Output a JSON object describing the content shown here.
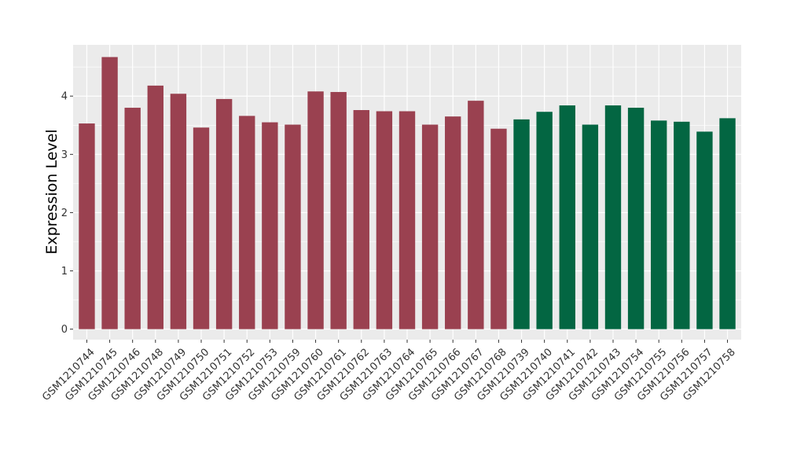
{
  "chart_data": {
    "type": "bar",
    "title": "",
    "xlabel": "",
    "ylabel": "Expression Level",
    "ylim": [
      -0.18,
      4.88
    ],
    "yticks": [
      0,
      1,
      2,
      3,
      4
    ],
    "grid": true,
    "legend": "none",
    "panel_background": "#ebebeb",
    "grid_color": "#ffffff",
    "categories": [
      "GSM1210744",
      "GSM1210745",
      "GSM1210746",
      "GSM1210748",
      "GSM1210749",
      "GSM1210750",
      "GSM1210751",
      "GSM1210752",
      "GSM1210753",
      "GSM1210759",
      "GSM1210760",
      "GSM1210761",
      "GSM1210762",
      "GSM1210763",
      "GSM1210764",
      "GSM1210765",
      "GSM1210766",
      "GSM1210767",
      "GSM1210768",
      "GSM1210739",
      "GSM1210740",
      "GSM1210741",
      "GSM1210742",
      "GSM1210743",
      "GSM1210754",
      "GSM1210755",
      "GSM1210756",
      "GSM1210757",
      "GSM1210758"
    ],
    "values": [
      3.53,
      4.67,
      3.8,
      4.18,
      4.04,
      3.46,
      3.95,
      3.66,
      3.55,
      3.51,
      4.08,
      4.07,
      3.76,
      3.74,
      3.74,
      3.51,
      3.65,
      3.92,
      3.44,
      3.6,
      3.73,
      3.84,
      3.51,
      3.84,
      3.8,
      3.58,
      3.56,
      3.39,
      3.62
    ],
    "bar_colors": [
      "#9a4150",
      "#9a4150",
      "#9a4150",
      "#9a4150",
      "#9a4150",
      "#9a4150",
      "#9a4150",
      "#9a4150",
      "#9a4150",
      "#9a4150",
      "#9a4150",
      "#9a4150",
      "#9a4150",
      "#9a4150",
      "#9a4150",
      "#9a4150",
      "#9a4150",
      "#9a4150",
      "#9a4150",
      "#036642",
      "#036642",
      "#036642",
      "#036642",
      "#036642",
      "#036642",
      "#036642",
      "#036642",
      "#036642",
      "#036642"
    ]
  }
}
